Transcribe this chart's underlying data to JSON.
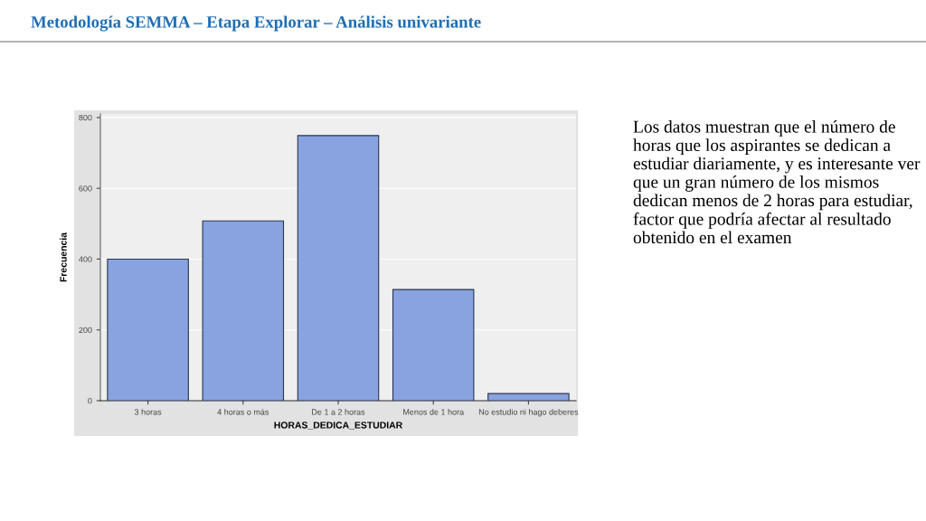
{
  "chart_data": {
    "type": "bar",
    "title": "Metodología SEMMA – Etapa Explorar – Análisis univariante",
    "categories": [
      "3 horas",
      "4 horas o más",
      "De 1 a 2 horas",
      "Menos de 1 hora",
      "No estudio ni hago deberes"
    ],
    "values": [
      400,
      508,
      749,
      314,
      20
    ],
    "color": "#88a3e0",
    "xlabel": "HORAS_DEDICA_ESTUDIAR",
    "ylabel": "Frecuencia",
    "ylim": [
      0,
      810
    ],
    "yticks": [
      0,
      200,
      400,
      600,
      800
    ],
    "grid": "y",
    "annotations": [
      "Los datos muestran que el número de horas que los aspirantes se dedican a estudiar diariamente, y es interesante ver que un gran número de los mismos dedican menos de 2 horas para estudiar, factor que podría afectar al resultado obtenido en el examen"
    ]
  }
}
